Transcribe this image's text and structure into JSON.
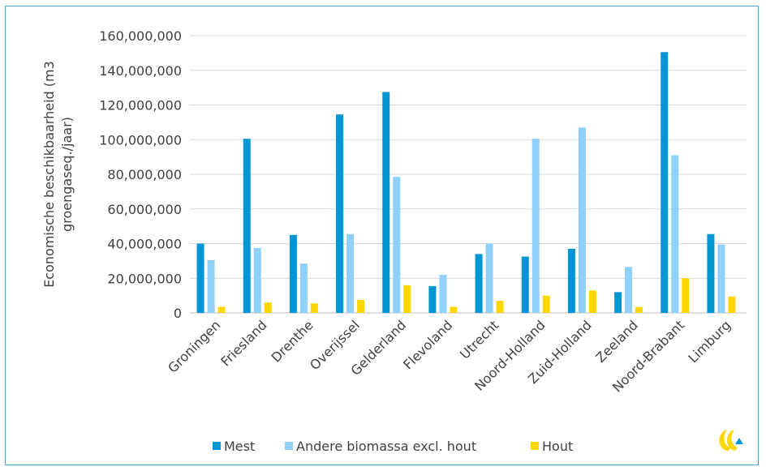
{
  "chart_data": {
    "type": "bar",
    "ylabel_lines": [
      "Economische beschikbaarheid (m3",
      "groengaseq./jaar)"
    ],
    "ylim": [
      0,
      160000000
    ],
    "yticks": [
      "0",
      "20,000,000",
      "40,000,000",
      "60,000,000",
      "80,000,000",
      "100,000,000",
      "120,000,000",
      "140,000,000",
      "160,000,000"
    ],
    "categories": [
      "Groningen",
      "Friesland",
      "Drenthe",
      "Overijssel",
      "Gelderland",
      "Flevoland",
      "Utrecht",
      "Noord-Holland",
      "Zuid-Holland",
      "Zeeland",
      "Noord-Brabant",
      "Limburg"
    ],
    "series": [
      {
        "name": "Mest",
        "color": "#0096d6",
        "values": [
          40000000,
          100500000,
          45000000,
          114500000,
          127500000,
          15500000,
          34000000,
          32500000,
          37000000,
          12000000,
          150500000,
          45500000
        ]
      },
      {
        "name": "Andere biomassa excl. hout",
        "color": "#8fd1fa",
        "values": [
          30500000,
          37500000,
          28500000,
          45500000,
          78500000,
          22000000,
          40000000,
          100500000,
          107000000,
          26500000,
          91000000,
          39500000
        ]
      },
      {
        "name": "Hout",
        "color": "#ffd700",
        "values": [
          3500000,
          6000000,
          5500000,
          7500000,
          16000000,
          3500000,
          7000000,
          10000000,
          13000000,
          3500000,
          20000000,
          9500000
        ]
      }
    ],
    "grid": true,
    "legend_position": "bottom"
  },
  "logo": {
    "name": "ce-delft-logo-icon",
    "colors": [
      "#ffd700",
      "#0096d6"
    ]
  }
}
